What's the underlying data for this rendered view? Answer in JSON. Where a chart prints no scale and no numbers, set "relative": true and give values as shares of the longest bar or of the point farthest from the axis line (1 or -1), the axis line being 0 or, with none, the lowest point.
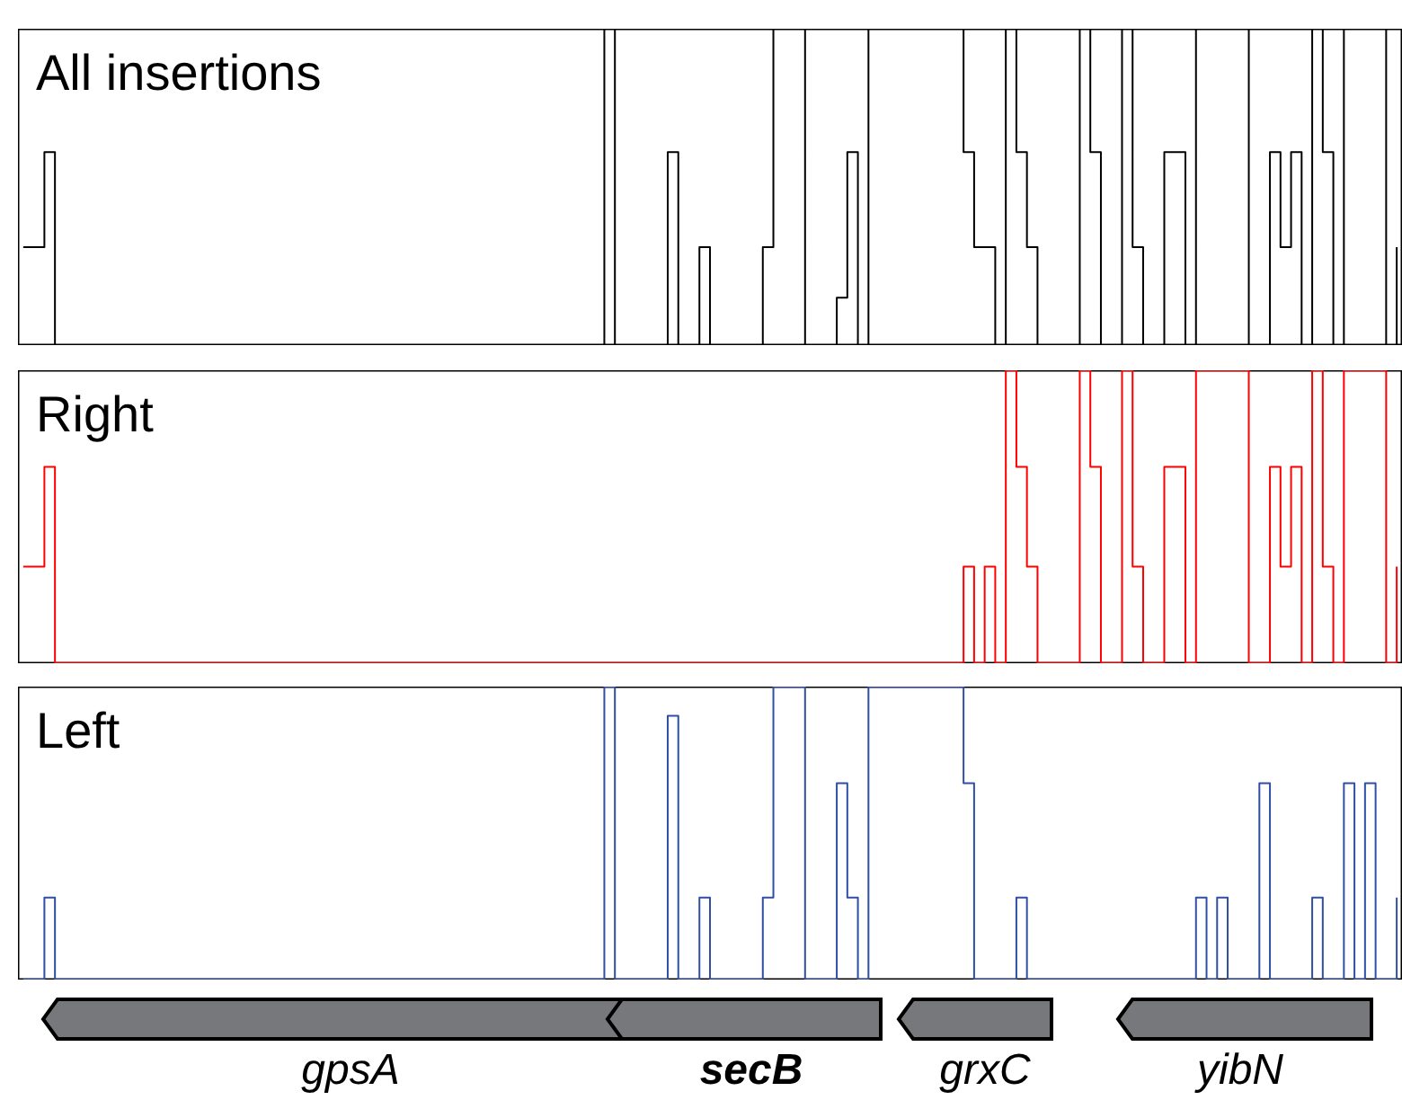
{
  "chart_data": [
    {
      "type": "step",
      "relative": true,
      "categories": [
        null,
        null,
        null,
        null,
        null,
        null,
        null,
        null,
        null,
        null,
        null,
        null,
        null,
        null,
        null,
        null,
        null,
        null,
        null,
        null,
        null,
        null,
        null,
        null,
        null,
        null,
        null,
        null,
        null,
        null,
        null,
        null,
        null,
        null,
        null,
        null,
        null,
        null,
        null,
        null,
        null,
        null,
        null,
        null,
        null,
        null,
        null,
        null,
        null,
        null,
        null,
        null,
        null,
        null,
        null,
        null,
        null,
        null,
        null,
        null,
        null,
        null,
        null,
        null,
        null,
        null,
        null,
        null,
        null,
        null,
        null,
        null,
        null,
        null,
        null,
        null,
        null,
        null,
        null,
        null,
        null,
        null,
        null,
        null,
        null,
        null,
        null,
        null,
        null,
        null,
        null,
        null,
        null,
        null,
        null,
        null,
        null,
        null,
        null,
        null,
        null,
        null,
        null,
        null,
        null,
        null,
        null,
        null,
        null,
        null,
        null,
        null,
        null,
        null,
        null,
        null,
        null,
        null,
        null,
        null,
        null,
        null,
        null,
        null,
        null,
        null,
        null,
        null,
        null,
        null,
        null
      ],
      "series": [
        {
          "name": "All insertions",
          "color": "#000000",
          "values": [
            0.31,
            0.31,
            0.61,
            0,
            0,
            0,
            0,
            0,
            0,
            0,
            0,
            0,
            0,
            0,
            0,
            0,
            0,
            0,
            0,
            0,
            0,
            0,
            0,
            0,
            0,
            0,
            0,
            0,
            0,
            0,
            0,
            0,
            0,
            0,
            0,
            0,
            0,
            0,
            0,
            0,
            0,
            0,
            0,
            0,
            0,
            0,
            0,
            0,
            0,
            0,
            0,
            0,
            0,
            0,
            0,
            1,
            0,
            0,
            0,
            0,
            0,
            0.61,
            0,
            0,
            0.31,
            0,
            0,
            0,
            0,
            0,
            0.31,
            1,
            1,
            1,
            0,
            0,
            0,
            0.15,
            0.61,
            0,
            1,
            1,
            1,
            1,
            1,
            1,
            1,
            1,
            1,
            0.61,
            0.31,
            0.31,
            0,
            1,
            0.61,
            0.31,
            0,
            0,
            0,
            0,
            1,
            0.61,
            0,
            0,
            1,
            0.31,
            0,
            0,
            0.61,
            0.61,
            0,
            1,
            1,
            1,
            1,
            1,
            0,
            0,
            0.61,
            0.31,
            0.61,
            0,
            1,
            0.61,
            0,
            1,
            1,
            1,
            1,
            0,
            0.31
          ]
        }
      ]
    },
    {
      "type": "step",
      "relative": true,
      "categories": [
        null,
        null,
        null,
        null,
        null,
        null,
        null,
        null,
        null,
        null,
        null,
        null,
        null,
        null,
        null,
        null,
        null,
        null,
        null,
        null,
        null,
        null,
        null,
        null,
        null,
        null,
        null,
        null,
        null,
        null,
        null,
        null,
        null,
        null,
        null,
        null,
        null,
        null,
        null,
        null,
        null,
        null,
        null,
        null,
        null,
        null,
        null,
        null,
        null,
        null,
        null,
        null,
        null,
        null,
        null,
        null,
        null,
        null,
        null,
        null,
        null,
        null,
        null,
        null,
        null,
        null,
        null,
        null,
        null,
        null,
        null,
        null,
        null,
        null,
        null,
        null,
        null,
        null,
        null,
        null,
        null,
        null,
        null,
        null,
        null,
        null,
        null,
        null,
        null,
        null,
        null,
        null,
        null,
        null,
        null,
        null,
        null,
        null,
        null,
        null,
        null,
        null,
        null,
        null,
        null,
        null,
        null,
        null,
        null,
        null,
        null,
        null,
        null,
        null,
        null,
        null,
        null,
        null,
        null,
        null,
        null,
        null,
        null,
        null,
        null,
        null,
        null,
        null,
        null,
        null,
        null
      ],
      "series": [
        {
          "name": "Right",
          "color": "#ff0000",
          "values": [
            0.33,
            0.33,
            0.67,
            0,
            0,
            0,
            0,
            0,
            0,
            0,
            0,
            0,
            0,
            0,
            0,
            0,
            0,
            0,
            0,
            0,
            0,
            0,
            0,
            0,
            0,
            0,
            0,
            0,
            0,
            0,
            0,
            0,
            0,
            0,
            0,
            0,
            0,
            0,
            0,
            0,
            0,
            0,
            0,
            0,
            0,
            0,
            0,
            0,
            0,
            0,
            0,
            0,
            0,
            0,
            0,
            0,
            0,
            0,
            0,
            0,
            0,
            0,
            0,
            0,
            0,
            0,
            0,
            0,
            0,
            0,
            0,
            0,
            0,
            0,
            0,
            0,
            0,
            0,
            0,
            0,
            0,
            0,
            0,
            0,
            0,
            0,
            0,
            0,
            0,
            0.33,
            0,
            0.33,
            0,
            1,
            0.67,
            0.33,
            0,
            0,
            0,
            0,
            1,
            0.67,
            0,
            0,
            1,
            0.33,
            0,
            0,
            0.67,
            0.67,
            0,
            1,
            1,
            1,
            1,
            1,
            0,
            0,
            0.67,
            0.33,
            0.67,
            0,
            1,
            0.33,
            0,
            1,
            1,
            1,
            1,
            0,
            0.33
          ]
        }
      ]
    },
    {
      "type": "step",
      "relative": true,
      "categories": [
        null,
        null,
        null,
        null,
        null,
        null,
        null,
        null,
        null,
        null,
        null,
        null,
        null,
        null,
        null,
        null,
        null,
        null,
        null,
        null,
        null,
        null,
        null,
        null,
        null,
        null,
        null,
        null,
        null,
        null,
        null,
        null,
        null,
        null,
        null,
        null,
        null,
        null,
        null,
        null,
        null,
        null,
        null,
        null,
        null,
        null,
        null,
        null,
        null,
        null,
        null,
        null,
        null,
        null,
        null,
        null,
        null,
        null,
        null,
        null,
        null,
        null,
        null,
        null,
        null,
        null,
        null,
        null,
        null,
        null,
        null,
        null,
        null,
        null,
        null,
        null,
        null,
        null,
        null,
        null,
        null,
        null,
        null,
        null,
        null,
        null,
        null,
        null,
        null,
        null,
        null,
        null,
        null,
        null,
        null,
        null,
        null,
        null,
        null,
        null,
        null,
        null,
        null,
        null,
        null,
        null,
        null,
        null,
        null,
        null,
        null,
        null,
        null,
        null,
        null,
        null,
        null,
        null,
        null,
        null,
        null,
        null,
        null,
        null,
        null,
        null,
        null,
        null,
        null,
        null,
        null
      ],
      "series": [
        {
          "name": "Left",
          "color": "#2e4fa3",
          "values": [
            0,
            0,
            0.28,
            0,
            0,
            0,
            0,
            0,
            0,
            0,
            0,
            0,
            0,
            0,
            0,
            0,
            0,
            0,
            0,
            0,
            0,
            0,
            0,
            0,
            0,
            0,
            0,
            0,
            0,
            0,
            0,
            0,
            0,
            0,
            0,
            0,
            0,
            0,
            0,
            0,
            0,
            0,
            0,
            0,
            0,
            0,
            0,
            0,
            0,
            0,
            0,
            0,
            0,
            0,
            0,
            1,
            0,
            0,
            0,
            0,
            0,
            0.9,
            0,
            0,
            0.28,
            0,
            0,
            0,
            0,
            0,
            0.28,
            1,
            1,
            1,
            0,
            0,
            0,
            0.67,
            0.28,
            0,
            1,
            1,
            1,
            1,
            1,
            1,
            1,
            1,
            1,
            0.67,
            0,
            0,
            0,
            0,
            0.28,
            0,
            0,
            0,
            0,
            0,
            0,
            0,
            0,
            0,
            0,
            0,
            0,
            0,
            0,
            0,
            0,
            0.28,
            0,
            0.28,
            0,
            0,
            0,
            0.67,
            0,
            0,
            0,
            0,
            0.28,
            0,
            0,
            0.67,
            0,
            0.67,
            0,
            0,
            0.28
          ]
        }
      ],
      "annotations": [
        "gpsA",
        "secB",
        "grxC",
        "yibN"
      ]
    }
  ]
}
